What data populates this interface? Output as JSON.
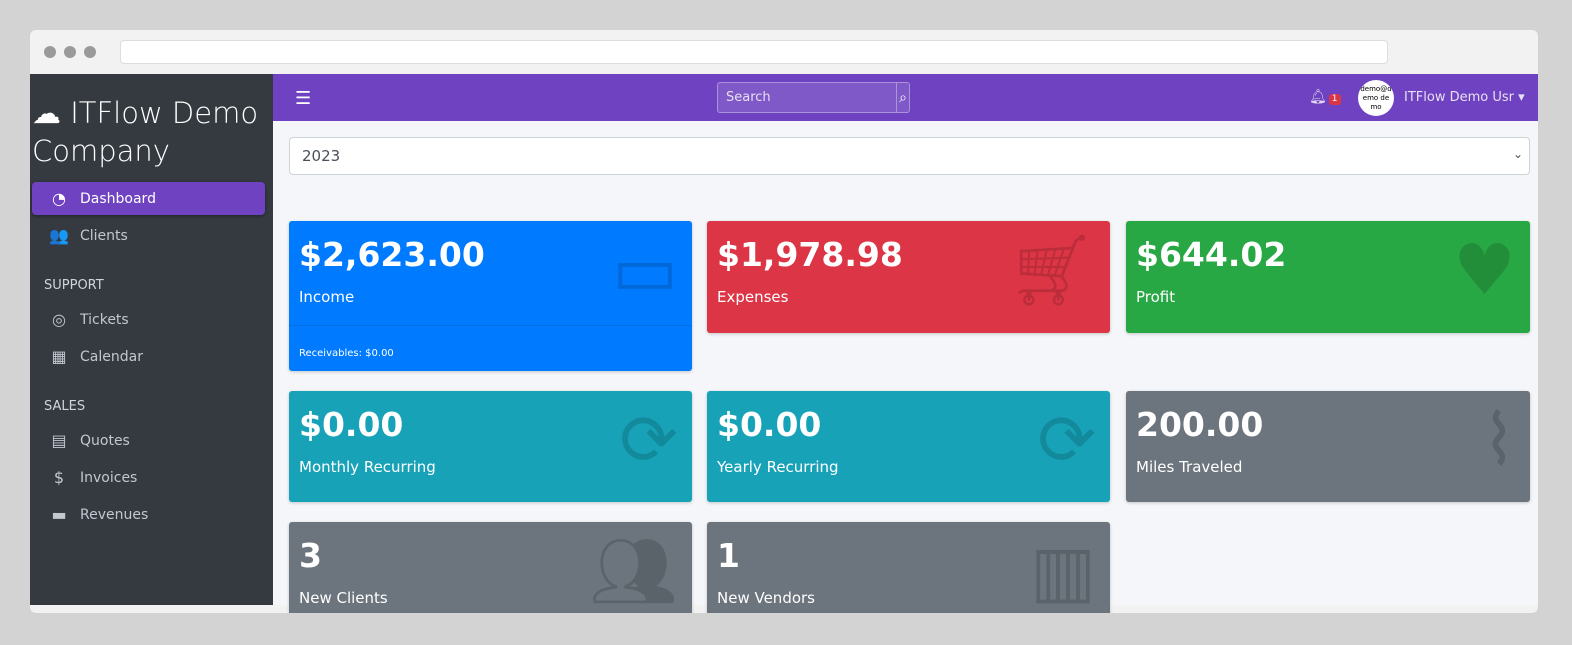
{
  "sidebar": {
    "brand": "ITFlow Demo Company",
    "brand_icon": "cloud-icon",
    "items": [
      {
        "label": "Dashboard",
        "icon": "tachometer-icon",
        "active": true
      },
      {
        "label": "Clients",
        "icon": "users-icon"
      }
    ],
    "support_header": "SUPPORT",
    "support": [
      {
        "label": "Tickets",
        "icon": "life-ring-icon"
      },
      {
        "label": "Calendar",
        "icon": "calendar-icon"
      }
    ],
    "sales_header": "SALES",
    "sales": [
      {
        "label": "Quotes",
        "icon": "file-icon"
      },
      {
        "label": "Invoices",
        "icon": "file-invoice-dollar-icon"
      },
      {
        "label": "Revenues",
        "icon": "credit-card-icon"
      }
    ]
  },
  "topbar": {
    "search_placeholder": "Search",
    "notifications": "1",
    "avatar_text": "demo@demo demo",
    "user": "ITFlow Demo Usr"
  },
  "year_select": "2023",
  "cards": [
    {
      "value": "$2,623.00",
      "label": "Income",
      "footer": "Receivables: $0.00",
      "color": "#007bff",
      "icon": "credit-card-icon"
    },
    {
      "value": "$1,978.98",
      "label": "Expenses",
      "color": "#dc3545",
      "icon": "shopping-cart-icon"
    },
    {
      "value": "$644.02",
      "label": "Profit",
      "color": "#28a745",
      "icon": "heart-icon"
    },
    {
      "value": "$0.00",
      "label": "Monthly Recurring",
      "color": "#17a2b8",
      "icon": "sync-icon"
    },
    {
      "value": "$0.00",
      "label": "Yearly Recurring",
      "color": "#17a2b8",
      "icon": "sync-icon"
    },
    {
      "value": "200.00",
      "label": "Miles Traveled",
      "color": "#6c757d",
      "icon": "route-icon"
    },
    {
      "value": "3",
      "label": "New Clients",
      "color": "#6c757d",
      "icon": "users-icon"
    },
    {
      "value": "1",
      "label": "New Vendors",
      "color": "#6c757d",
      "icon": "building-icon"
    }
  ]
}
